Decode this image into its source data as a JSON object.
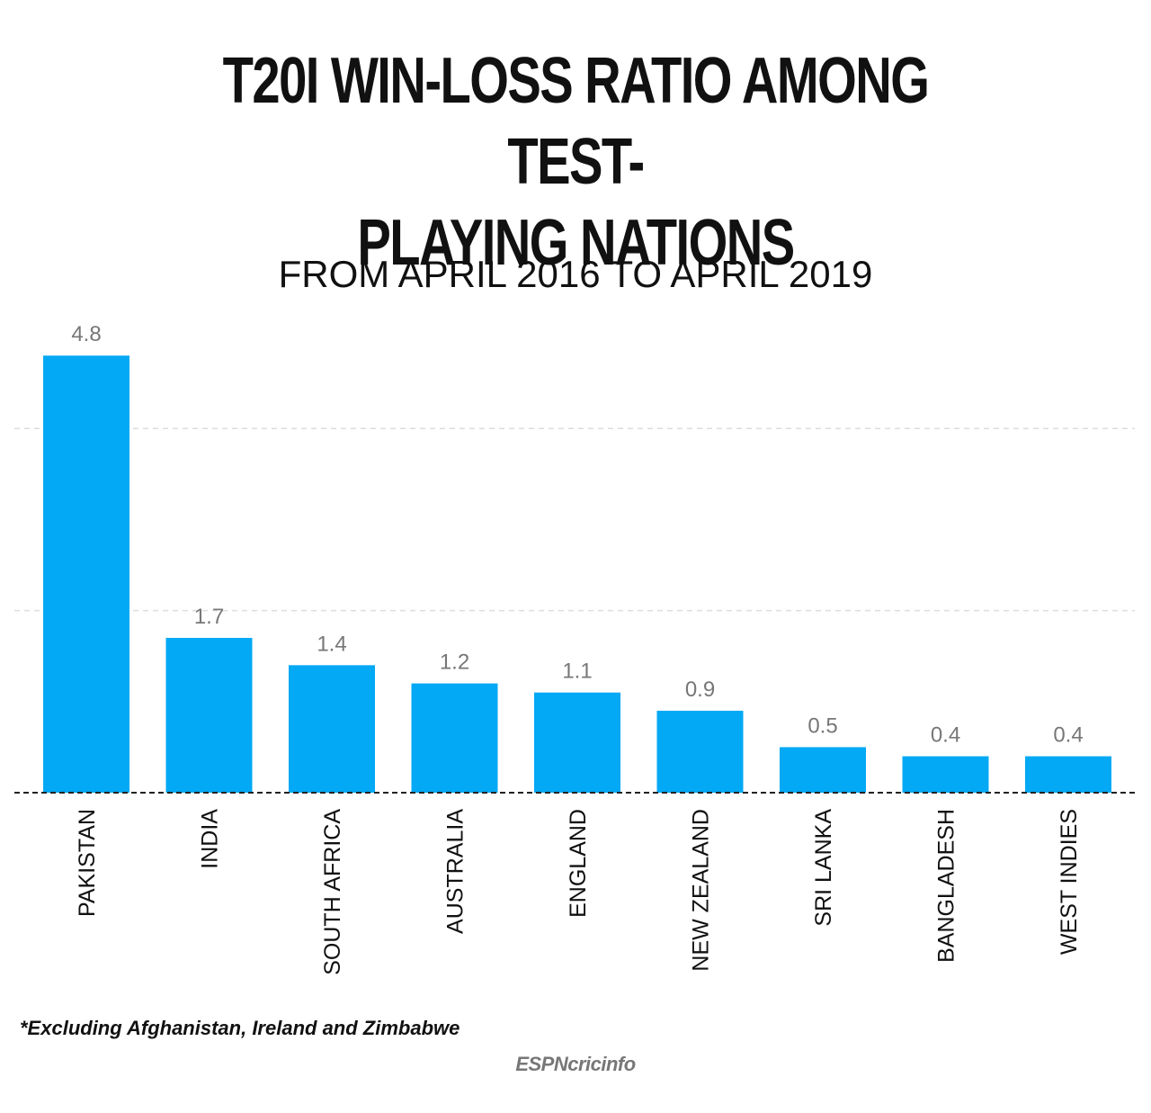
{
  "title": "T20I WIN-LOSS RATIO AMONG TEST-PLAYING NATIONS",
  "title_lines": [
    "T20I WIN-LOSS RATIO AMONG TEST-",
    "PLAYING NATIONS"
  ],
  "subtitle": "FROM APRIL 2016 TO APRIL 2019",
  "footnote": "*Excluding Afghanistan, Ireland and Zimbabwe",
  "brand": "ESPNcricinfo",
  "colors": {
    "bar": "#03A9F4",
    "value_label": "#777777",
    "category_label": "#111111",
    "grid": "#dddddd",
    "baseline": "#222222"
  },
  "chart_data": {
    "type": "bar",
    "title": "T20I WIN-LOSS RATIO AMONG TEST-PLAYING NATIONS",
    "subtitle": "FROM APRIL 2016 TO APRIL 2019",
    "categories": [
      "PAKISTAN",
      "INDIA",
      "SOUTH AFRICA",
      "AUSTRALIA",
      "ENGLAND",
      "NEW ZEALAND",
      "SRI LANKA",
      "BANGLADESH",
      "WEST INDIES"
    ],
    "values": [
      4.8,
      1.7,
      1.4,
      1.2,
      1.1,
      0.9,
      0.5,
      0.4,
      0.4
    ],
    "value_labels": [
      "4.8",
      "1.7",
      "1.4",
      "1.2",
      "1.1",
      "0.9",
      "0.5",
      "0.4",
      "0.4"
    ],
    "xlabel": "",
    "ylabel": "",
    "ylim": [
      0,
      6
    ],
    "y_gridlines": [
      2,
      4
    ],
    "grid": true,
    "legend": "none"
  }
}
